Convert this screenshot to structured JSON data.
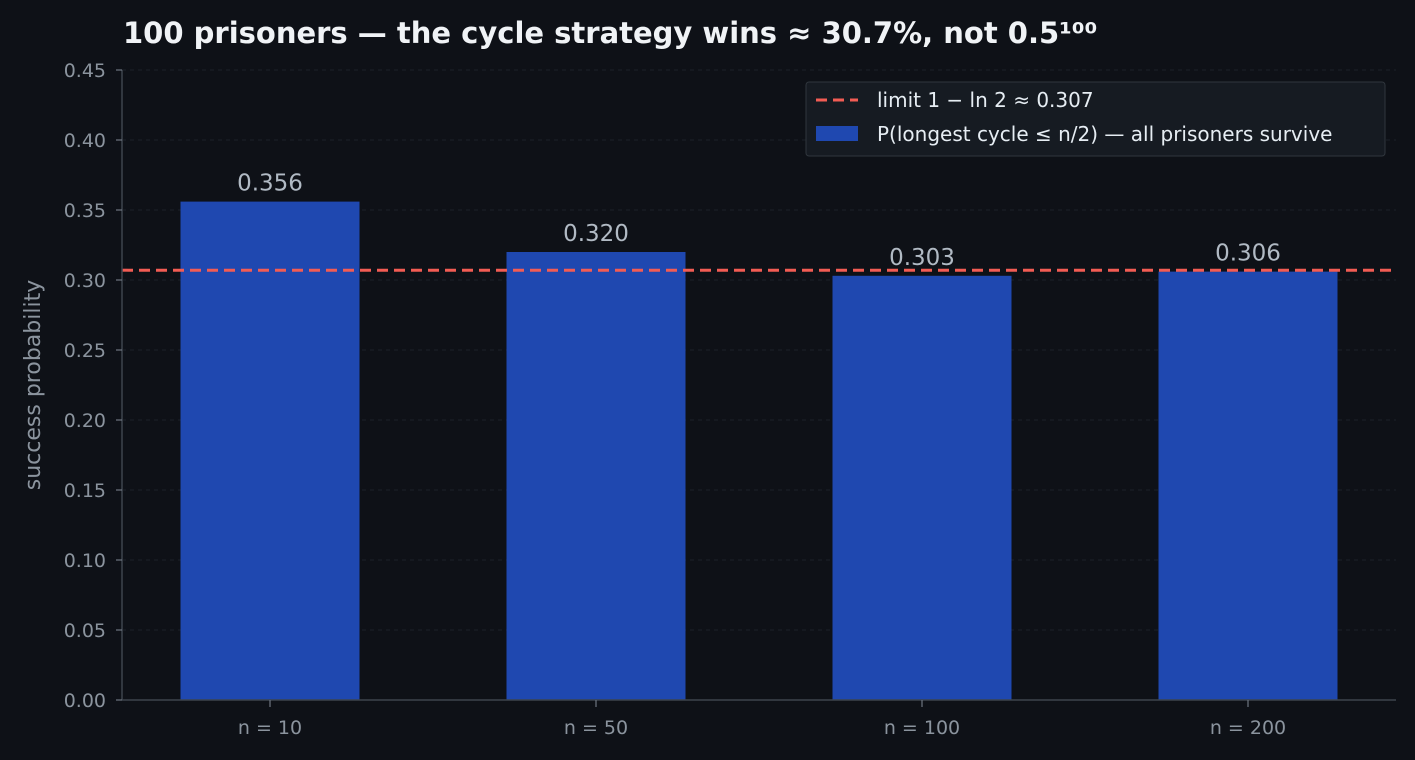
{
  "chart_data": {
    "type": "bar",
    "title": "100 prisoners — the cycle strategy wins ≈ 30.7%, not 0.5¹⁰⁰",
    "xlabel": "",
    "ylabel": "success probability",
    "categories": [
      "n = 10",
      "n = 50",
      "n = 100",
      "n = 200"
    ],
    "series": [
      {
        "name": "P(longest cycle ≤ n/2) — all prisoners survive",
        "values": [
          0.356,
          0.32,
          0.303,
          0.306
        ],
        "labels": [
          "0.356",
          "0.320",
          "0.303",
          "0.306"
        ],
        "color": "#1f48b0"
      }
    ],
    "reference_line": {
      "name": "limit 1 − ln 2 ≈ 0.307",
      "value": 0.307,
      "color": "#f25c54",
      "style": "dashed"
    },
    "ylim": [
      0,
      0.45
    ],
    "yticks": [
      "0.00",
      "0.05",
      "0.10",
      "0.15",
      "0.20",
      "0.25",
      "0.30",
      "0.35",
      "0.40",
      "0.45"
    ],
    "grid": "horizontal dashed",
    "legend_position": "top-right"
  }
}
